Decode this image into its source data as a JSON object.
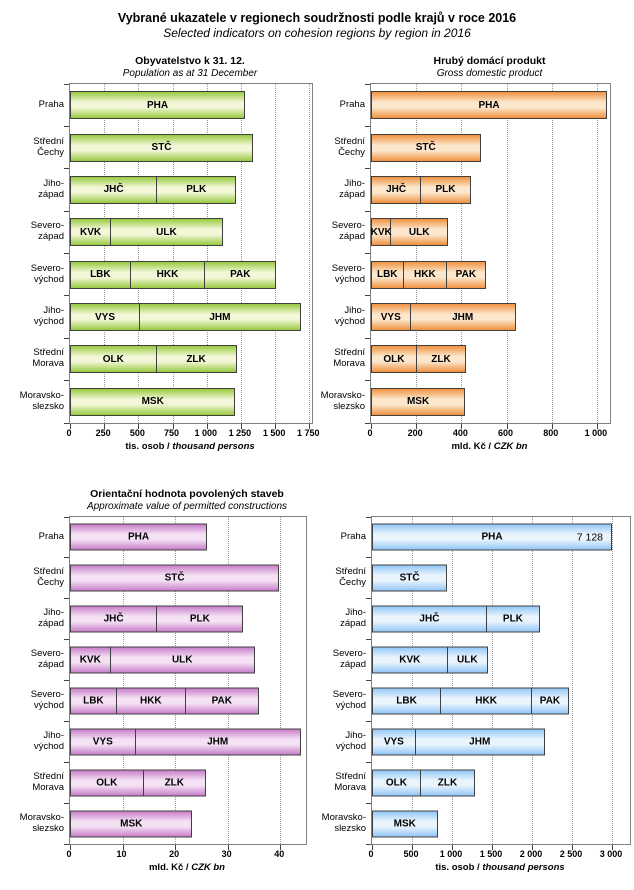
{
  "header": {
    "title": "Vybrané ukazatele v regionech soudržnosti podle krajů v roce 2016",
    "subtitle": "Selected indicators on cohesion regions by region in 2016"
  },
  "chart_data": [
    {
      "id": "population",
      "type": "bar",
      "orientation": "horizontal",
      "stacked": true,
      "title": "Obyvatelstvo k 31. 12.",
      "subtitle": "Population as at 31 December",
      "xlabel_cs": "tis. osob /",
      "xlabel_en": "thousand persons",
      "axis_max": 1770,
      "ticks": [
        0,
        250,
        500,
        750,
        1000,
        1250,
        1500,
        1750
      ],
      "tick_labels": [
        "0",
        "250",
        "500",
        "750",
        "1 000",
        "1 250",
        "1 500",
        "1 750"
      ],
      "grid": true,
      "colors": {
        "edge": "#97C93F",
        "mid": "#F3F7D8",
        "border": "#404040"
      },
      "categories": [
        [
          "Praha"
        ],
        [
          "Střední",
          "Čechy"
        ],
        [
          "Jiho-",
          "západ"
        ],
        [
          "Severo-",
          "západ"
        ],
        [
          "Severo-",
          "východ"
        ],
        [
          "Jiho-",
          "východ"
        ],
        [
          "Střední",
          "Morava"
        ],
        [
          "Moravsko-",
          "slezsko"
        ]
      ],
      "rows": [
        [
          {
            "code": "PHA",
            "value": 1281
          }
        ],
        [
          {
            "code": "STČ",
            "value": 1339
          }
        ],
        [
          {
            "code": "JHČ",
            "value": 638
          },
          {
            "code": "PLK",
            "value": 578
          }
        ],
        [
          {
            "code": "KVK",
            "value": 297
          },
          {
            "code": "ULK",
            "value": 821
          }
        ],
        [
          {
            "code": "LBK",
            "value": 441
          },
          {
            "code": "HKK",
            "value": 551
          },
          {
            "code": "PAK",
            "value": 517
          }
        ],
        [
          {
            "code": "VYS",
            "value": 509
          },
          {
            "code": "JHM",
            "value": 1179
          }
        ],
        [
          {
            "code": "OLK",
            "value": 634
          },
          {
            "code": "ZLK",
            "value": 584
          }
        ],
        [
          {
            "code": "MSK",
            "value": 1210
          }
        ]
      ]
    },
    {
      "id": "gdp",
      "type": "bar",
      "orientation": "horizontal",
      "stacked": true,
      "title": "Hrubý domácí produkt",
      "subtitle": "Gross domestic product",
      "xlabel_cs": "mld. Kč /",
      "xlabel_en": "CZK bn",
      "axis_max": 1058,
      "ticks": [
        0,
        200,
        400,
        600,
        800,
        1000
      ],
      "tick_labels": [
        "0",
        "200",
        "400",
        "600",
        "800",
        "1 000"
      ],
      "grid": true,
      "colors": {
        "edge": "#F0913F",
        "mid": "#FCE7CD",
        "border": "#404040"
      },
      "categories": [
        [
          "Praha"
        ],
        [
          "Střední",
          "Čechy"
        ],
        [
          "Jiho-",
          "západ"
        ],
        [
          "Severo-",
          "západ"
        ],
        [
          "Severo-",
          "východ"
        ],
        [
          "Jiho-",
          "východ"
        ],
        [
          "Střední",
          "Morava"
        ],
        [
          "Moravsko-",
          "slezsko"
        ]
      ],
      "rows": [
        [
          {
            "code": "PHA",
            "value": 1045
          }
        ],
        [
          {
            "code": "STČ",
            "value": 485
          }
        ],
        [
          {
            "code": "JHČ",
            "value": 222
          },
          {
            "code": "PLK",
            "value": 220
          }
        ],
        [
          {
            "code": "KVK",
            "value": 88
          },
          {
            "code": "ULK",
            "value": 253
          }
        ],
        [
          {
            "code": "LBK",
            "value": 142
          },
          {
            "code": "HKK",
            "value": 197
          },
          {
            "code": "PAK",
            "value": 168
          }
        ],
        [
          {
            "code": "VYS",
            "value": 173
          },
          {
            "code": "JHM",
            "value": 468
          }
        ],
        [
          {
            "code": "OLK",
            "value": 203
          },
          {
            "code": "ZLK",
            "value": 218
          }
        ],
        [
          {
            "code": "MSK",
            "value": 417
          }
        ]
      ]
    },
    {
      "id": "permitted-constructions",
      "type": "bar",
      "orientation": "horizontal",
      "stacked": true,
      "title": "Orientační hodnota povolených staveb",
      "subtitle": "Approximate value of permitted constructions",
      "xlabel_cs": "mld. Kč /",
      "xlabel_en": "CZK bn",
      "axis_max": 44.9,
      "ticks": [
        0,
        10,
        20,
        30,
        40
      ],
      "tick_labels": [
        "0",
        "10",
        "20",
        "30",
        "40"
      ],
      "grid": true,
      "colors": {
        "edge": "#C97FC9",
        "mid": "#F4E2F4",
        "border": "#404040"
      },
      "categories": [
        [
          "Praha"
        ],
        [
          "Střední",
          "Čechy"
        ],
        [
          "Jiho-",
          "západ"
        ],
        [
          "Severo-",
          "západ"
        ],
        [
          "Severo-",
          "východ"
        ],
        [
          "Jiho-",
          "východ"
        ],
        [
          "Střední",
          "Morava"
        ],
        [
          "Moravsko-",
          "slezsko"
        ]
      ],
      "rows": [
        [
          {
            "code": "PHA",
            "value": 26.1
          }
        ],
        [
          {
            "code": "STČ",
            "value": 39.8
          }
        ],
        [
          {
            "code": "JHČ",
            "value": 16.6
          },
          {
            "code": "PLK",
            "value": 16.4
          }
        ],
        [
          {
            "code": "KVK",
            "value": 7.6
          },
          {
            "code": "ULK",
            "value": 27.6
          }
        ],
        [
          {
            "code": "LBK",
            "value": 8.8
          },
          {
            "code": "HKK",
            "value": 13.3
          },
          {
            "code": "PAK",
            "value": 13.8
          }
        ],
        [
          {
            "code": "VYS",
            "value": 12.4
          },
          {
            "code": "JHM",
            "value": 31.5
          }
        ],
        [
          {
            "code": "OLK",
            "value": 14.0
          },
          {
            "code": "ZLK",
            "value": 11.9
          }
        ],
        [
          {
            "code": "MSK",
            "value": 23.3
          }
        ]
      ]
    },
    {
      "id": "guests",
      "type": "bar",
      "orientation": "horizontal",
      "stacked": true,
      "title": "",
      "subtitle": "",
      "xlabel_cs": "tis. osob /",
      "xlabel_en": "thousand persons",
      "axis_max": 3225,
      "cap": 3000,
      "ticks": [
        0,
        500,
        1000,
        1500,
        2000,
        2500,
        3000
      ],
      "tick_labels": [
        "0",
        "500",
        "1 000",
        "1 500",
        "2 000",
        "2 500",
        "3 000"
      ],
      "grid": true,
      "colors": {
        "edge": "#93C7F7",
        "mid": "#EAF4FD",
        "border": "#404040"
      },
      "categories": [
        [
          "Praha"
        ],
        [
          "Střední",
          "Čechy"
        ],
        [
          "Jiho-",
          "západ"
        ],
        [
          "Severo-",
          "západ"
        ],
        [
          "Severo-",
          "východ"
        ],
        [
          "Jiho-",
          "východ"
        ],
        [
          "Střední",
          "Morava"
        ],
        [
          "Moravsko-",
          "slezsko"
        ]
      ],
      "rows": [
        [
          {
            "code": "PHA",
            "value": 7128,
            "value_label": "7 128"
          }
        ],
        [
          {
            "code": "STČ",
            "value": 940
          }
        ],
        [
          {
            "code": "JHČ",
            "value": 1440
          },
          {
            "code": "PLK",
            "value": 660
          }
        ],
        [
          {
            "code": "KVK",
            "value": 950
          },
          {
            "code": "ULK",
            "value": 500
          }
        ],
        [
          {
            "code": "LBK",
            "value": 860
          },
          {
            "code": "HKK",
            "value": 1150
          },
          {
            "code": "PAK",
            "value": 450
          }
        ],
        [
          {
            "code": "VYS",
            "value": 540
          },
          {
            "code": "JHM",
            "value": 1620
          }
        ],
        [
          {
            "code": "OLK",
            "value": 610
          },
          {
            "code": "ZLK",
            "value": 680
          }
        ],
        [
          {
            "code": "MSK",
            "value": 820
          }
        ]
      ]
    }
  ]
}
